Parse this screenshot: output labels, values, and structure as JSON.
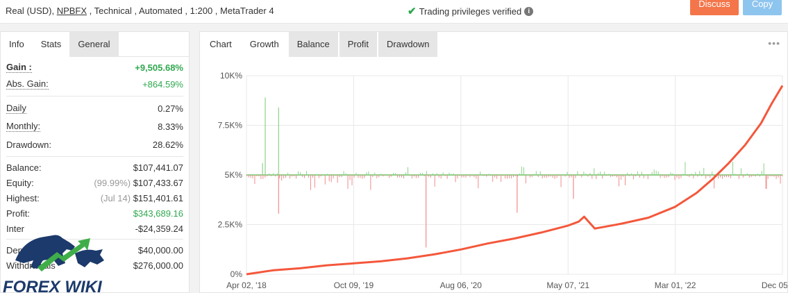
{
  "header": {
    "account_info": "Real (USD), ",
    "broker": "NPBFX",
    "account_info_rest": " , Technical , Automated , 1:200 , MetaTrader 4",
    "verified_text": "Trading privileges verified",
    "check_icon": "check-icon",
    "info_icon": "info-icon",
    "discuss_label": "Discuss",
    "copy_label": "Copy",
    "colors": {
      "discuss": "#f4754a",
      "copy": "#8ec5ef",
      "verified": "#2fa84f"
    }
  },
  "left_tabs": [
    {
      "label": "Info"
    },
    {
      "label": "Stats"
    },
    {
      "label": "General"
    }
  ],
  "stats": {
    "gain": {
      "label": "Gain :",
      "value": "+9,505.68%"
    },
    "abs_gain": {
      "label": "Abs. Gain:",
      "value": "+864.59%"
    },
    "daily": {
      "label": "Daily",
      "value": "0.27%"
    },
    "monthly": {
      "label": "Monthly:",
      "value": "8.33%"
    },
    "drawdown": {
      "label": "Drawdown:",
      "value": "28.62%"
    },
    "balance": {
      "label": "Balance:",
      "value": "$107,441.07"
    },
    "equity": {
      "label": "Equity:",
      "note": "(99.99%)",
      "value": "$107,433.67"
    },
    "highest": {
      "label": "Highest:",
      "note": "(Jul 14)",
      "value": "$151,401.61"
    },
    "profit": {
      "label": "Profit:",
      "value": "$343,689.16"
    },
    "interest": {
      "label": "Inter",
      "value": "-$24,359.24"
    },
    "deposits": {
      "label": "Deposit",
      "value": "$40,000.00"
    },
    "withdrawals": {
      "label": "Withdrawals",
      "value": "$276,000.00"
    }
  },
  "logo_text": "FOREX WIKI",
  "chart_tabs": [
    {
      "label": "Chart"
    },
    {
      "label": "Growth"
    },
    {
      "label": "Balance"
    },
    {
      "label": "Profit"
    },
    {
      "label": "Drawdown"
    }
  ],
  "more_icon": "more-dots-icon",
  "chart_data": {
    "type": "line",
    "title": "",
    "xlabel": "",
    "ylabel": "",
    "ylim": [
      0,
      10000
    ],
    "y_ticks": [
      "0%",
      "2.5K%",
      "5K%",
      "7.5K%",
      "10K%"
    ],
    "x_ticks": [
      "Apr 02, '18",
      "Oct 09, '19",
      "Aug 06, '20",
      "May 07, '21",
      "Mar 01, '22",
      "Dec 05, '22"
    ],
    "grid": true,
    "series": [
      {
        "type": "line",
        "color": "#f4573b",
        "x": [
          0,
          0.05,
          0.1,
          0.15,
          0.2,
          0.25,
          0.3,
          0.35,
          0.4,
          0.45,
          0.5,
          0.55,
          0.6,
          0.62,
          0.63,
          0.65,
          0.7,
          0.75,
          0.8,
          0.84,
          0.87,
          0.9,
          0.93,
          0.96,
          0.98,
          1.0
        ],
        "values": [
          0,
          200,
          300,
          450,
          550,
          650,
          800,
          1000,
          1250,
          1550,
          1800,
          2100,
          2450,
          2650,
          2900,
          2300,
          2550,
          2850,
          3400,
          4100,
          4800,
          5600,
          6500,
          7600,
          8600,
          9500
        ]
      },
      {
        "type": "bar-oscillator",
        "baseline": 5000,
        "up_color": "#8fd18a",
        "down_color": "#f28b8b",
        "spikes": [
          {
            "x": 0.03,
            "value": 5600
          },
          {
            "x": 0.035,
            "value": 8900
          },
          {
            "x": 0.06,
            "value": 8400
          },
          {
            "x": 0.06,
            "value": 3050
          },
          {
            "x": 0.335,
            "value": 1350
          },
          {
            "x": 0.505,
            "value": 3100
          },
          {
            "x": 0.61,
            "value": 3800
          },
          {
            "x": 0.97,
            "value": 4300
          }
        ]
      }
    ]
  }
}
